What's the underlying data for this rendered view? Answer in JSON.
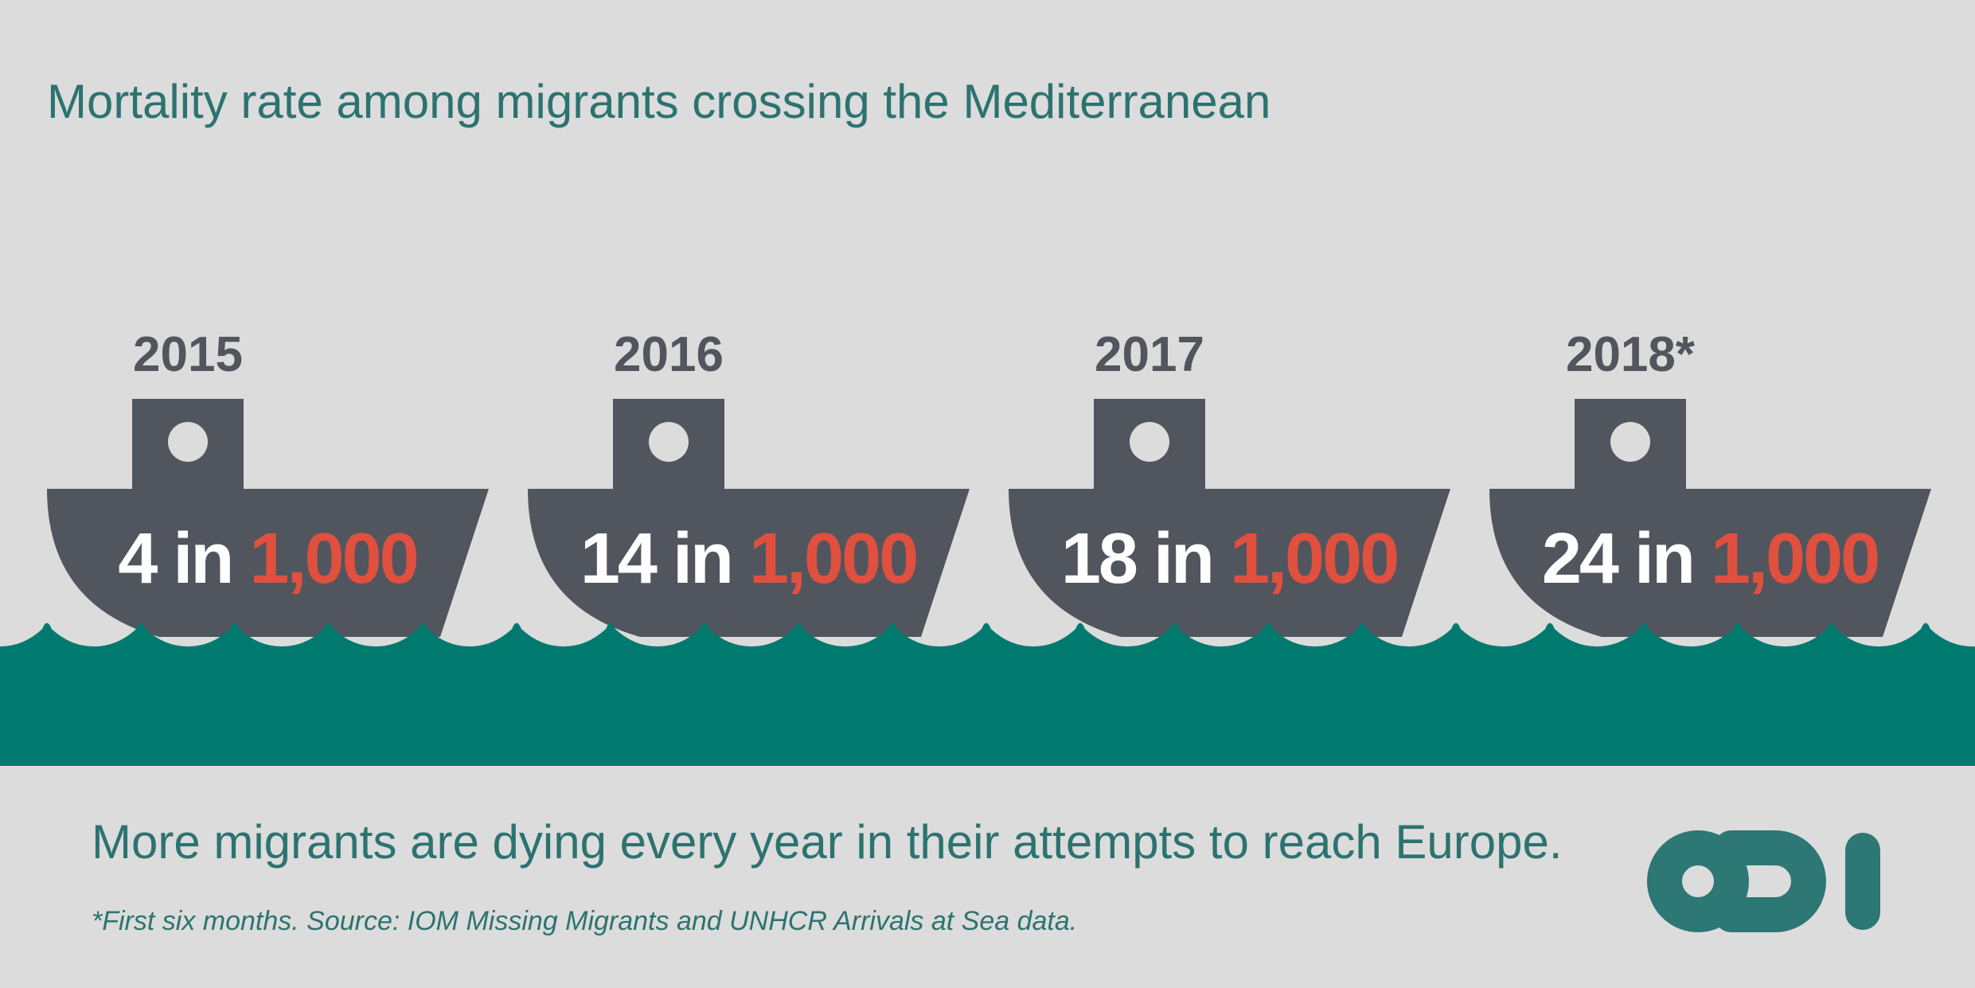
{
  "header": {
    "title": "Mortality rate among migrants crossing the Mediterranean"
  },
  "boats": [
    {
      "year": "2015",
      "rate": "4",
      "connector": "in",
      "base": "1,000"
    },
    {
      "year": "2016",
      "rate": "14",
      "connector": "in",
      "base": "1,000"
    },
    {
      "year": "2017",
      "rate": "18",
      "connector": "in",
      "base": "1,000"
    },
    {
      "year": "2018*",
      "rate": "24",
      "connector": "in",
      "base": "1,000"
    }
  ],
  "footer": {
    "message": "More migrants are dying every year in their attempts to reach Europe.",
    "note": "*First six months. Source: IOM Missing Migrants and UNHCR Arrivals at Sea data."
  }
}
